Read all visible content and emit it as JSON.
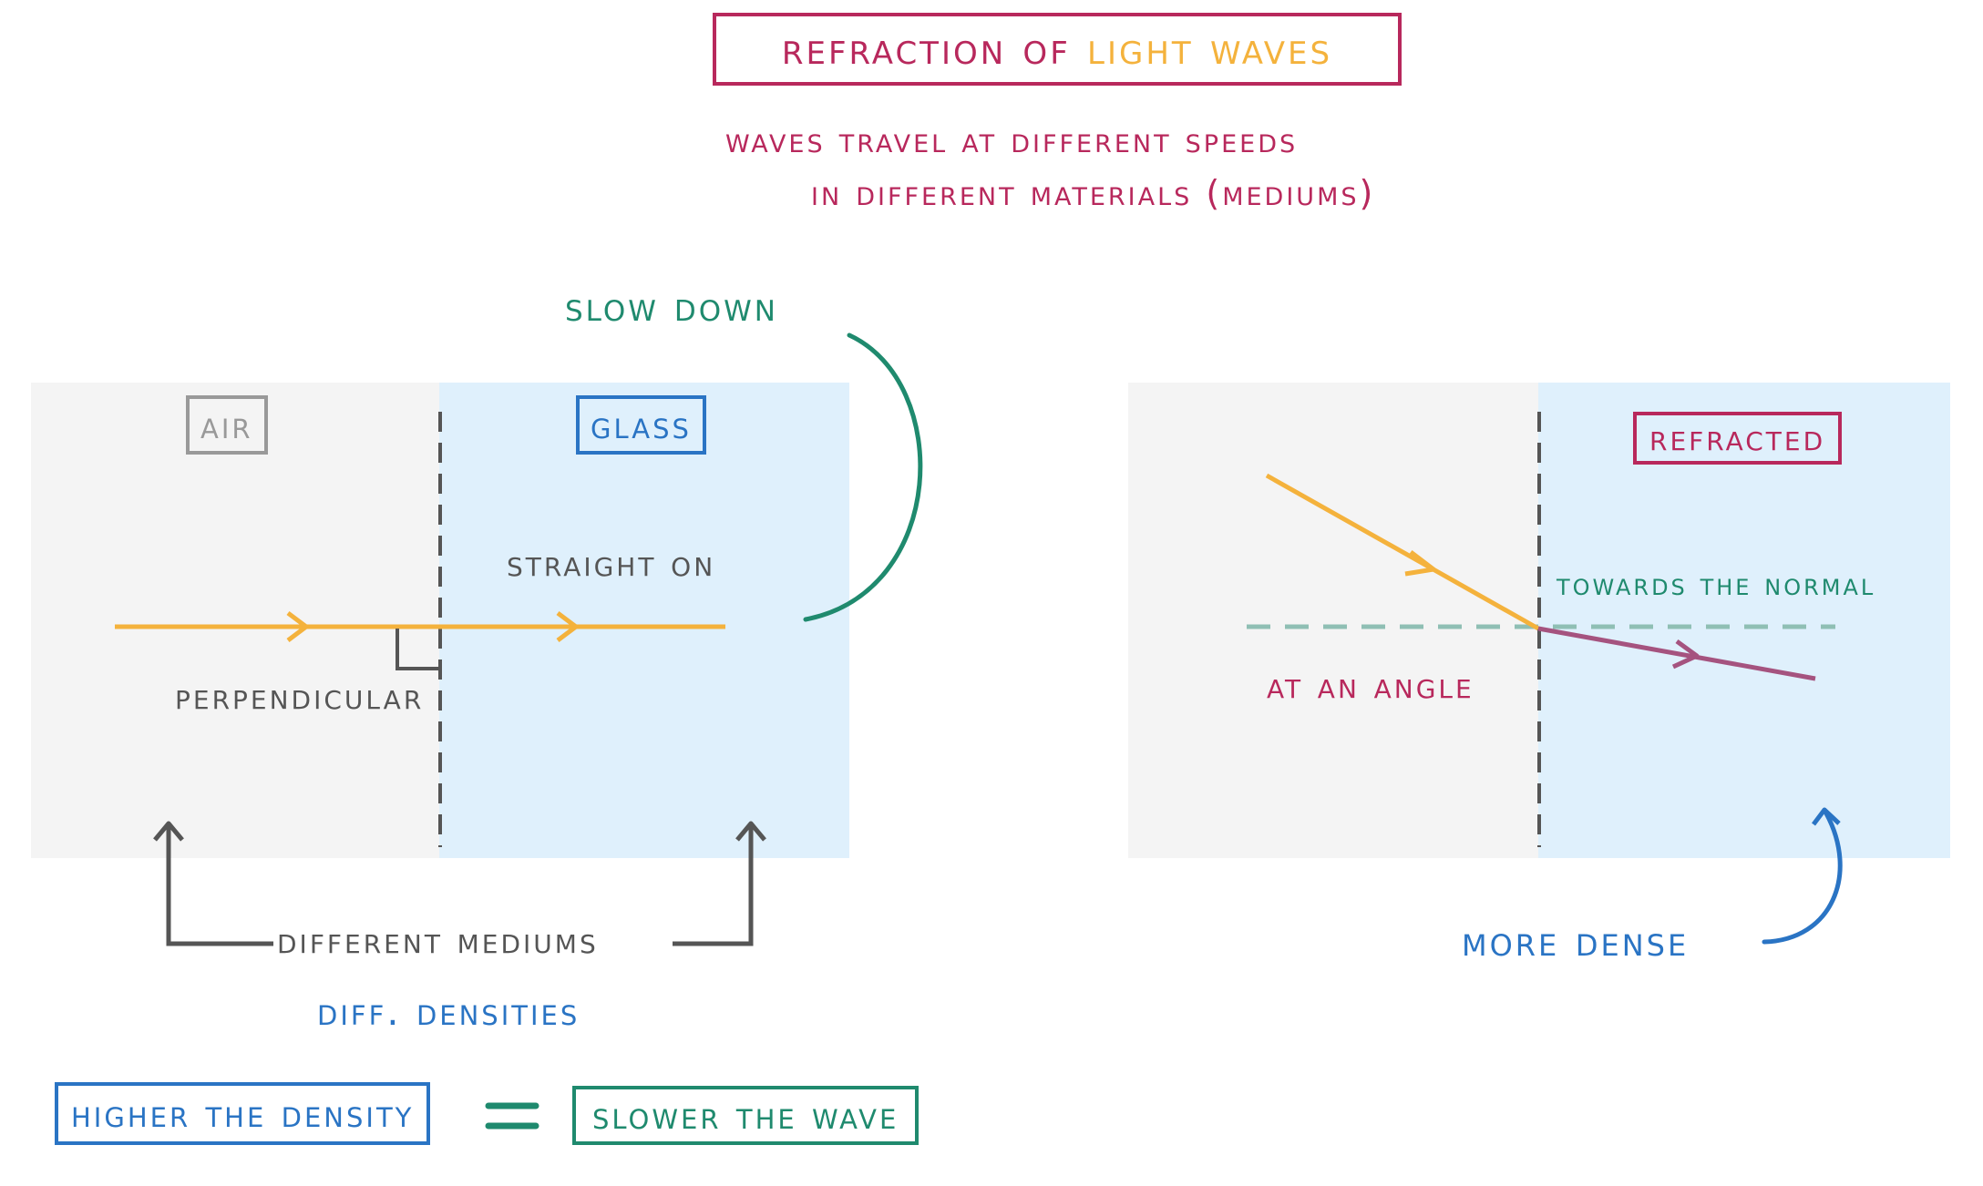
{
  "title": {
    "part1": "Refraction of",
    "part2": "Light waves"
  },
  "subtitle": {
    "line1": "waves travel at different speeds",
    "line2": "in different materials (mediums)"
  },
  "left_diagram": {
    "medium1_label": "Air",
    "medium2_label": "Glass",
    "ray_label": "Straight on",
    "angle_label": "Perpendicular",
    "callout_label": "Slow down",
    "bracket_label": "Different mediums",
    "sub_label": "Diff. Densities"
  },
  "right_diagram": {
    "badge_label": "Refracted",
    "normal_label": "Towards the normal",
    "incident_label": "At an Angle",
    "density_label": "More dense"
  },
  "equation": {
    "left": "Higher the Density",
    "operator": "=",
    "right": "Slower the wave"
  },
  "colors": {
    "crimson": "#b8285c",
    "gold": "#f4b23c",
    "teal": "#1f8a6e",
    "blue": "#2a74c4",
    "gray": "#555555",
    "purple": "#a5537f",
    "air_bg": "#f4f4f4",
    "glass_bg": "#dff0fc"
  }
}
